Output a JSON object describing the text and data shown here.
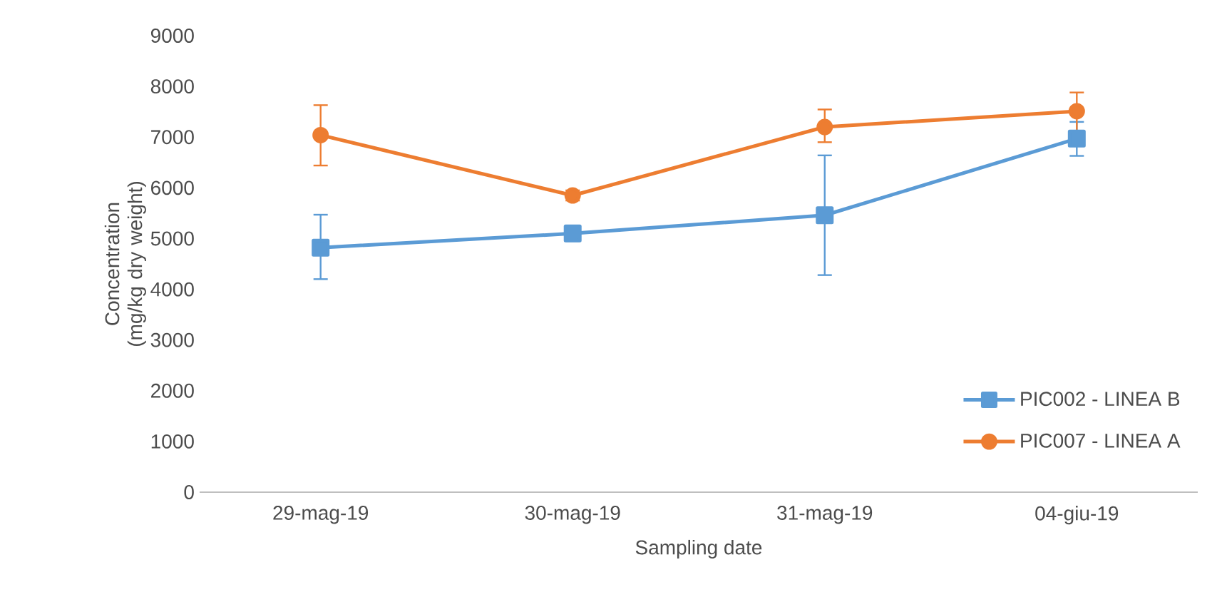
{
  "chart_data": {
    "type": "line",
    "xlabel": "Sampling date",
    "ylabel": "Concentration (mg/kg dry weight)",
    "categories": [
      "29-mag-19",
      "30-mag-19",
      "31-mag-19",
      "04-giu-19"
    ],
    "ylim": [
      0,
      9000
    ],
    "yticks": [
      0,
      1000,
      2000,
      3000,
      4000,
      5000,
      6000,
      7000,
      8000,
      9000
    ],
    "grid": false,
    "legend": "bottom right",
    "series": [
      {
        "name": "PIC002 - LINEA B",
        "color": "#5b9bd5",
        "marker": "square",
        "values": [
          4820,
          5100,
          5460,
          6970
        ],
        "errors": [
          [
            4200,
            5470
          ],
          [
            4950,
            5250
          ],
          [
            4280,
            6640
          ],
          [
            6630,
            7300
          ]
        ]
      },
      {
        "name": "PIC007 - LINEA A",
        "color": "#ed7d31",
        "marker": "circle",
        "values": [
          7040,
          5850,
          7200,
          7510
        ],
        "errors": [
          [
            6440,
            7630
          ],
          [
            5750,
            5950
          ],
          [
            6900,
            7545
          ],
          [
            7100,
            7880
          ]
        ]
      }
    ]
  }
}
